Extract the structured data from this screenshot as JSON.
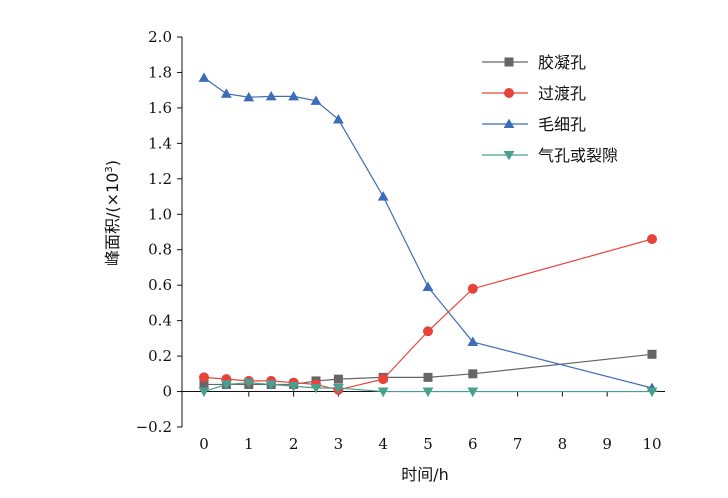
{
  "chart_data": {
    "type": "line",
    "xlabel": "时间/h",
    "ylabel_main": "峰面积/(×10",
    "ylabel_sup": "3",
    "ylabel_end": ")",
    "xlim": [
      -0.5,
      10.2
    ],
    "ylim": [
      -0.2,
      2.0
    ],
    "x_ticks": [
      0,
      1,
      2,
      3,
      4,
      5,
      6,
      7,
      8,
      9,
      10
    ],
    "x_tick_labels": [
      "0",
      "1",
      "2",
      "3",
      "4",
      "5",
      "6",
      "7",
      "8",
      "9",
      "10"
    ],
    "y_ticks": [
      -0.2,
      0,
      0.2,
      0.4,
      0.6,
      0.8,
      1.0,
      1.2,
      1.4,
      1.6,
      1.8,
      2.0
    ],
    "y_tick_labels": [
      "−0.2",
      "0",
      "0.2",
      "0.4",
      "0.6",
      "0.8",
      "1.0",
      "1.2",
      "1.4",
      "1.6",
      "1.8",
      "2.0"
    ],
    "grid": false,
    "legend_position": "top-right",
    "series": [
      {
        "name": "胶凝孔",
        "color": "#666666",
        "marker": "square",
        "x": [
          0,
          0.5,
          1,
          1.5,
          2,
          2.5,
          3,
          4,
          5,
          6,
          10
        ],
        "y": [
          0.04,
          0.04,
          0.04,
          0.04,
          0.04,
          0.06,
          0.07,
          0.08,
          0.08,
          0.1,
          0.21
        ]
      },
      {
        "name": "过渡孔",
        "color": "#e8433a",
        "marker": "circle",
        "x": [
          0,
          0.5,
          1,
          1.5,
          2,
          2.5,
          3,
          4,
          5,
          6,
          10
        ],
        "y": [
          0.08,
          0.07,
          0.06,
          0.06,
          0.05,
          0.04,
          0.01,
          0.07,
          0.34,
          0.58,
          0.86
        ]
      },
      {
        "name": "毛细孔",
        "color": "#3d6cb9",
        "marker": "triangle-up",
        "x": [
          0,
          0.5,
          1,
          1.5,
          2,
          2.5,
          3,
          4,
          5,
          6,
          10
        ],
        "y": [
          1.77,
          1.68,
          1.66,
          1.665,
          1.665,
          1.64,
          1.535,
          1.1,
          0.59,
          0.28,
          0.02
        ]
      },
      {
        "name": "气孔或裂隙",
        "color": "#4aa08e",
        "marker": "triangle-down",
        "x": [
          0,
          0.5,
          1,
          1.5,
          2,
          2.5,
          3,
          4,
          5,
          6,
          10
        ],
        "y": [
          0.0,
          0.04,
          0.05,
          0.04,
          0.03,
          0.02,
          0.02,
          0.0,
          0.0,
          0.0,
          0.0
        ]
      }
    ]
  }
}
